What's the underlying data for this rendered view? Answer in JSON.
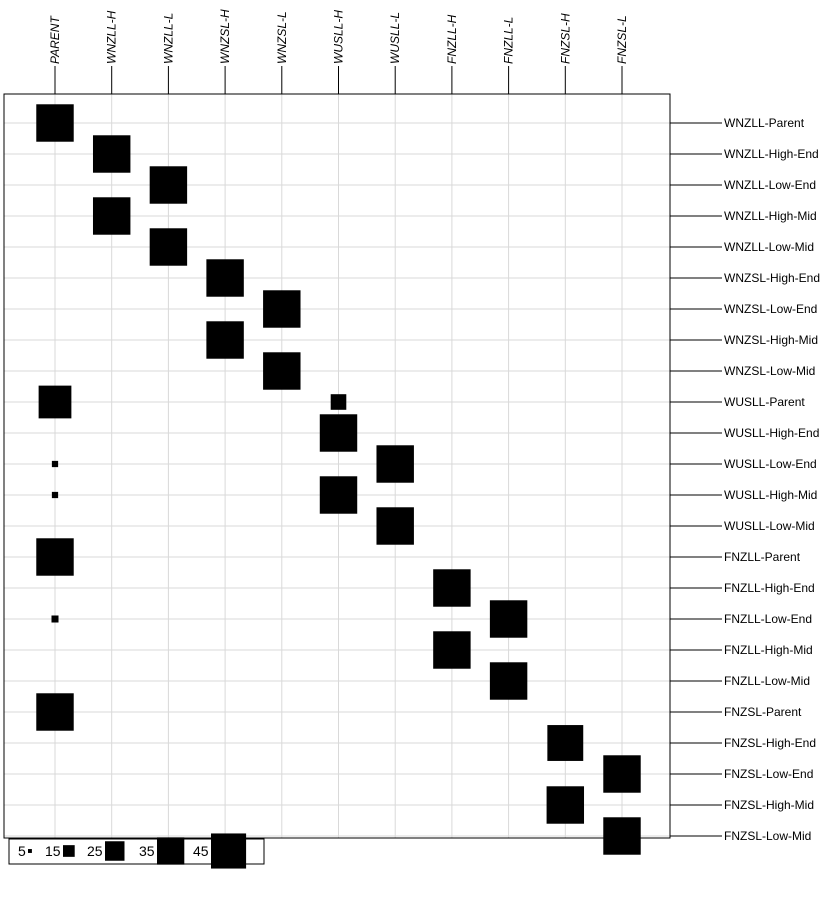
{
  "chart_data": {
    "type": "heatmap",
    "encoding": "square-size",
    "columns": [
      "PARENT",
      "WNZLL-H",
      "WNZLL-L",
      "WNZSL-H",
      "WNZSL-L",
      "WUSLL-H",
      "WUSLL-L",
      "FNZLL-H",
      "FNZLL-L",
      "FNZSL-H",
      "FNZSL-L"
    ],
    "rows": [
      "WNZLL-Parent",
      "WNZLL-High-End",
      "WNZLL-Low-End",
      "WNZLL-High-Mid",
      "WNZLL-Low-Mid",
      "WNZSL-High-End",
      "WNZSL-Low-End",
      "WNZSL-High-Mid",
      "WNZSL-Low-Mid",
      "WUSLL-Parent",
      "WUSLL-High-End",
      "WUSLL-Low-End",
      "WUSLL-High-Mid",
      "WUSLL-Low-Mid",
      "FNZLL-Parent",
      "FNZLL-High-End",
      "FNZLL-Low-End",
      "FNZLL-High-Mid",
      "FNZLL-Low-Mid",
      "FNZSL-Parent",
      "FNZSL-High-End",
      "FNZSL-Low-End",
      "FNZSL-High-Mid",
      "FNZSL-Low-Mid"
    ],
    "cells": [
      {
        "row": "WNZLL-Parent",
        "col": "PARENT",
        "value": 48
      },
      {
        "row": "WNZLL-High-End",
        "col": "WNZLL-H",
        "value": 48
      },
      {
        "row": "WNZLL-Low-End",
        "col": "WNZLL-L",
        "value": 48
      },
      {
        "row": "WNZLL-High-Mid",
        "col": "WNZLL-H",
        "value": 48
      },
      {
        "row": "WNZLL-Low-Mid",
        "col": "WNZLL-L",
        "value": 48
      },
      {
        "row": "WNZSL-High-End",
        "col": "WNZSL-H",
        "value": 48
      },
      {
        "row": "WNZSL-Low-End",
        "col": "WNZSL-L",
        "value": 48
      },
      {
        "row": "WNZSL-High-Mid",
        "col": "WNZSL-H",
        "value": 48
      },
      {
        "row": "WNZSL-Low-Mid",
        "col": "WNZSL-L",
        "value": 48
      },
      {
        "row": "WUSLL-Parent",
        "col": "PARENT",
        "value": 42
      },
      {
        "row": "WUSLL-Parent",
        "col": "WUSLL-H",
        "value": 20
      },
      {
        "row": "WUSLL-High-End",
        "col": "WUSLL-H",
        "value": 48
      },
      {
        "row": "WUSLL-Low-End",
        "col": "PARENT",
        "value": 8
      },
      {
        "row": "WUSLL-Low-End",
        "col": "WUSLL-L",
        "value": 48
      },
      {
        "row": "WUSLL-High-Mid",
        "col": "PARENT",
        "value": 8
      },
      {
        "row": "WUSLL-High-Mid",
        "col": "WUSLL-H",
        "value": 48
      },
      {
        "row": "WUSLL-Low-Mid",
        "col": "WUSLL-L",
        "value": 48
      },
      {
        "row": "FNZLL-Parent",
        "col": "PARENT",
        "value": 48
      },
      {
        "row": "FNZLL-High-End",
        "col": "FNZLL-H",
        "value": 48
      },
      {
        "row": "FNZLL-Low-End",
        "col": "PARENT",
        "value": 9
      },
      {
        "row": "FNZLL-Low-End",
        "col": "FNZLL-L",
        "value": 48
      },
      {
        "row": "FNZLL-High-Mid",
        "col": "FNZLL-H",
        "value": 48
      },
      {
        "row": "FNZLL-Low-Mid",
        "col": "FNZLL-L",
        "value": 48
      },
      {
        "row": "FNZSL-Parent",
        "col": "PARENT",
        "value": 48
      },
      {
        "row": "FNZSL-High-End",
        "col": "FNZSL-H",
        "value": 46
      },
      {
        "row": "FNZSL-Low-End",
        "col": "FNZSL-L",
        "value": 48
      },
      {
        "row": "FNZSL-High-Mid",
        "col": "FNZSL-H",
        "value": 48
      },
      {
        "row": "FNZSL-Low-Mid",
        "col": "FNZSL-L",
        "value": 48
      }
    ],
    "legend": {
      "placement": "bottom-left",
      "items": [
        {
          "label": "5",
          "value": 5
        },
        {
          "label": "15",
          "value": 15
        },
        {
          "label": "25",
          "value": 25
        },
        {
          "label": "35",
          "value": 35
        },
        {
          "label": "45",
          "value": 45
        }
      ]
    },
    "grid": true
  }
}
